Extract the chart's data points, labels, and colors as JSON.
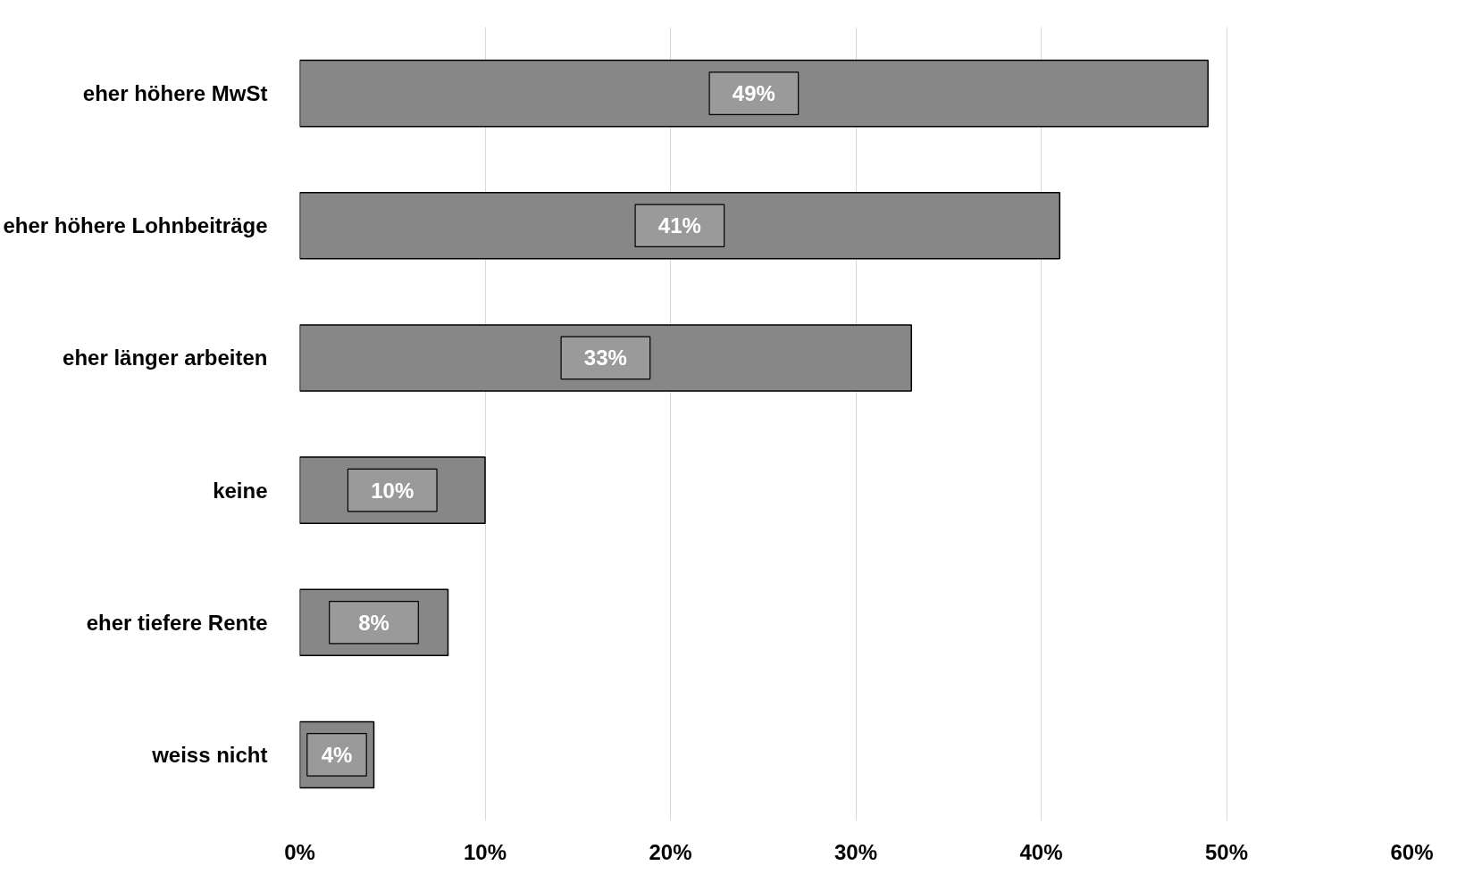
{
  "chart_data": {
    "type": "bar",
    "orientation": "horizontal",
    "categories": [
      "eher höhere MwSt",
      "eher höhere Lohnbeiträge",
      "eher länger arbeiten",
      "keine",
      "eher tiefere Rente",
      "weiss nicht"
    ],
    "values": [
      49,
      41,
      33,
      10,
      8,
      4
    ],
    "value_labels": [
      "49%",
      "41%",
      "33%",
      "10%",
      "8%",
      "4%"
    ],
    "color": "#878787",
    "xlim": [
      0,
      60
    ],
    "xticks": [
      {
        "value": 0,
        "label": "0%"
      },
      {
        "value": 10,
        "label": "10%"
      },
      {
        "value": 20,
        "label": "20%"
      },
      {
        "value": 30,
        "label": "30%"
      },
      {
        "value": 40,
        "label": "40%"
      },
      {
        "value": 50,
        "label": "50%"
      },
      {
        "value": 60,
        "label": "60%"
      }
    ],
    "grid": "x"
  }
}
